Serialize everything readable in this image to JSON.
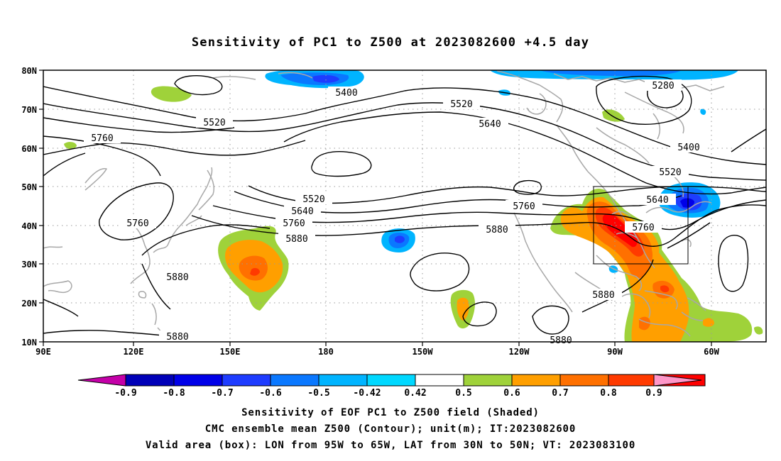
{
  "title": "Sensitivity of PC1 to Z500 at 2023082600 +4.5 day",
  "lat_labels": [
    "80N",
    "70N",
    "60N",
    "50N",
    "40N",
    "30N",
    "20N",
    "10N"
  ],
  "lon_labels": [
    "90E",
    "120E",
    "150E",
    "180",
    "150W",
    "120W",
    "90W",
    "60W"
  ],
  "contour_labels": [
    "5400",
    "5280",
    "5520",
    "5520",
    "5640",
    "5400",
    "5760",
    "5520",
    "5520",
    "5640",
    "5640",
    "5760",
    "5760",
    "5760",
    "5880",
    "5880",
    "5760",
    "5880",
    "5880",
    "5880",
    "5880"
  ],
  "colorbar": {
    "labels": [
      "-0.9",
      "-0.8",
      "-0.7",
      "-0.6",
      "-0.5",
      "-0.42",
      "0.42",
      "0.5",
      "0.6",
      "0.7",
      "0.8",
      "0.9"
    ],
    "colors": [
      "#c400a8",
      "#0000b8",
      "#0000e8",
      "#1e3cff",
      "#0a78ff",
      "#00b4ff",
      "#00d8ff",
      "#ffffff",
      "#9fd23a",
      "#ff9f00",
      "#ff7000",
      "#ff3a00",
      "#ff0000",
      "#ff96c8"
    ]
  },
  "captions": [
    "Sensitivity of EOF PC1 to Z500 field (Shaded)",
    "CMC ensemble mean Z500 (Contour); unit(m); IT:2023082600",
    "Valid area (box): LON from 95W to 65W, LAT from 30N to 50N; VT: 2023083100"
  ]
}
